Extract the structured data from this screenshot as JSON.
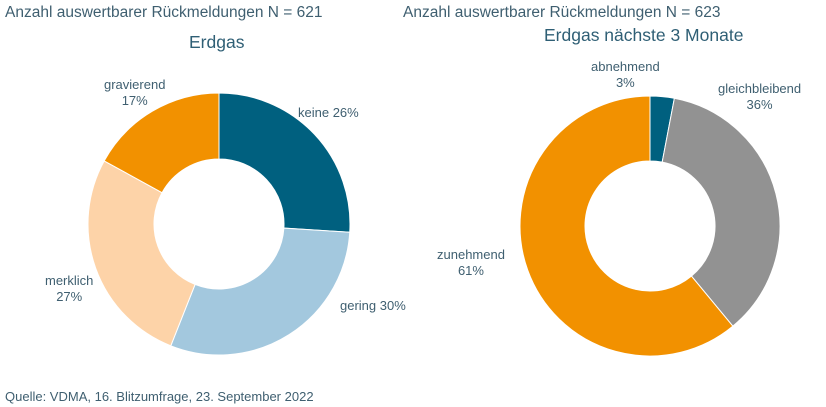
{
  "source": "Quelle: VDMA, 16. Blitzumfrage, 23. September 2022",
  "chart_data": [
    {
      "type": "pie",
      "variant": "donut",
      "n_label": "Anzahl auswertbarer Rückmeldungen N = 621",
      "title": "Erdgas",
      "categories": [
        "keine",
        "gering",
        "merklich",
        "gravierend"
      ],
      "values": [
        26,
        30,
        27,
        17
      ],
      "unit": "%",
      "colors": [
        "#00607f",
        "#a3c8de",
        "#fdd3a8",
        "#f29100"
      ],
      "labels": [
        {
          "name": "keine",
          "value": "26%"
        },
        {
          "name": "gering",
          "value": "30%"
        },
        {
          "name": "merklich",
          "value": "27%"
        },
        {
          "name": "gravierend",
          "value": "17%"
        }
      ]
    },
    {
      "type": "pie",
      "variant": "donut",
      "n_label": "Anzahl auswertbarer Rückmeldungen N = 623",
      "title": "Erdgas nächste 3 Monate",
      "categories": [
        "abnehmend",
        "gleichbleibend",
        "zunehmend"
      ],
      "values": [
        3,
        36,
        61
      ],
      "unit": "%",
      "colors": [
        "#00607f",
        "#929292",
        "#f29100"
      ],
      "labels": [
        {
          "name": "abnehmend",
          "value": "3%"
        },
        {
          "name": "gleichbleibend",
          "value": "36%"
        },
        {
          "name": "zunehmend",
          "value": "61%"
        }
      ]
    }
  ]
}
